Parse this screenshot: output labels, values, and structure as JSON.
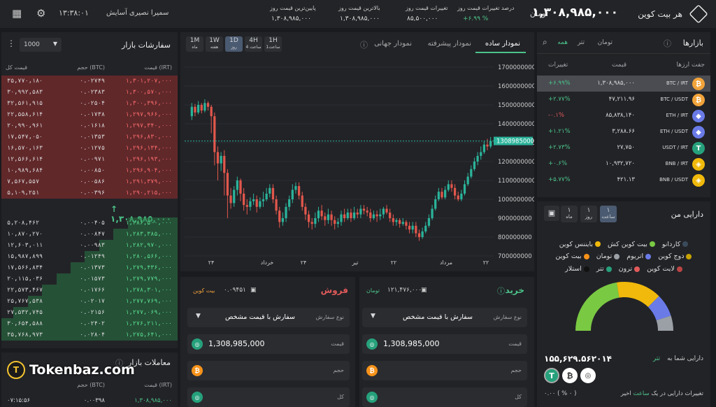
{
  "header": {
    "brand": "هر بیت کوین",
    "price": "۱,۳۰۸,۹۸۵,۰۰۰",
    "unit": "تومان",
    "stats": [
      {
        "label": "درصد تغییرات قیمت روز",
        "value": "+۶.۹۹ %"
      },
      {
        "label": "تغییرات قیمت روز",
        "value": "۸۵,۵۰۰,۰۰۰"
      },
      {
        "label": "بالاترین قیمت روز",
        "value": "۱,۳۰۸,۹۸۵,۰۰۰"
      },
      {
        "label": "پایین‌ترین قیمت روز",
        "value": "۱,۳۰۸,۹۸۵,۰۰۰"
      }
    ],
    "user": "سمیرا نصیری آسایش",
    "clock": "۱۳:۳۸:۰۱"
  },
  "markets": {
    "title": "بازارها",
    "tabs": [
      "تومان",
      "تتر",
      "همه"
    ],
    "cols": [
      "جفت ارزها",
      "قیمت",
      "تغییرات"
    ],
    "rows": [
      {
        "pair": "BTC / IRT",
        "price": "۱,۳۰۸,۹۸۵,۰۰۰",
        "change": "+۶.۹۹%",
        "color": "#f2a33a",
        "sym": "₿",
        "pos": true
      },
      {
        "pair": "BTC / USDT",
        "price": "۴۷,۲۱۱.۹۶",
        "change": "+۲.۷۷%",
        "color": "#f2a33a",
        "sym": "₿",
        "pos": true
      },
      {
        "pair": "ETH / IRT",
        "price": "۸۵,۸۳۸,۱۴۰",
        "change": "-۰.۱%",
        "color": "#6a7be8",
        "sym": "◆",
        "pos": false
      },
      {
        "pair": "ETH / USDT",
        "price": "۳,۲۸۸.۶۶",
        "change": "+۱.۲۱%",
        "color": "#6a7be8",
        "sym": "◆",
        "pos": true
      },
      {
        "pair": "USDT / IRT",
        "price": "۲۷,۷۵۰",
        "change": "+۲.۷۳%",
        "color": "#26a17b",
        "sym": "T",
        "pos": true
      },
      {
        "pair": "BNB / IRT",
        "price": "۱۰,۹۳۲,۷۲۰",
        "change": "+۰.۶%",
        "color": "#f0b90b",
        "sym": "◈",
        "pos": true
      },
      {
        "pair": "BNB / USDT",
        "price": "۴۲۱.۱۳",
        "change": "+۵.۷۷%",
        "color": "#f0b90b",
        "sym": "◈",
        "pos": true
      }
    ]
  },
  "assets": {
    "title": "دارایی من",
    "ranges": [
      {
        "a": "۱",
        "b": "ساعت"
      },
      {
        "a": "۱",
        "b": "روز"
      },
      {
        "a": "۱",
        "b": "ماه"
      }
    ],
    "legend": [
      {
        "name": "کاردانو",
        "color": "#3b4a5a"
      },
      {
        "name": "بیت کوین کش",
        "color": "#7ac943"
      },
      {
        "name": "بایننس کوین",
        "color": "#f0b90b"
      },
      {
        "name": "دوج کوین",
        "color": "#c7a200"
      },
      {
        "name": "اتریوم",
        "color": "#6a7be8"
      },
      {
        "name": "تومان",
        "color": "#9aa0a6"
      },
      {
        "name": "بیت کوین",
        "color": "#f7931a"
      },
      {
        "name": "لایت کوین",
        "color": "#b44"
      },
      {
        "name": "ترون",
        "color": "#e25a5a"
      },
      {
        "name": "تتر",
        "color": "#26a17b"
      },
      {
        "name": "استلار",
        "color": "#111"
      }
    ],
    "donut": [
      {
        "v": 45,
        "c": "#7ac943"
      },
      {
        "v": 30,
        "c": "#f0b90b"
      },
      {
        "v": 15,
        "c": "#6a7be8"
      },
      {
        "v": 10,
        "c": "#9aa0a6"
      }
    ],
    "total_label": "دارایی شما به",
    "total_unit": "تتر",
    "total": "۱۵۵,۶۲۹.۵۶۲۰۱۴",
    "change_label": "تغییرات دارایی در یک",
    "change_word": "ساعت",
    "change_word2": "اخیر",
    "change_value": "۰.۰۰ ( % ۰ )"
  },
  "chart_tabs": {
    "simple": "نمودار ساده",
    "adv": "نمودار پیشرفته",
    "world": "نمودار جهانی"
  },
  "chart_ranges": [
    {
      "a": "1M",
      "b": "ماه"
    },
    {
      "a": "1W",
      "b": "هفته"
    },
    {
      "a": "1D",
      "b": "روز"
    },
    {
      "a": "4H",
      "b": "4 ساعت"
    },
    {
      "a": "1H",
      "b": "1ساعت"
    }
  ],
  "chart_data": {
    "type": "candlestick",
    "ylim": [
      700000000,
      1700000000
    ],
    "yticks": [
      1700000000,
      1600000000,
      1500000000,
      1400000000,
      1300000000,
      1200000000,
      1100000000,
      1000000000,
      900000000,
      800000000,
      700000000
    ],
    "xticks": [
      "۲۴",
      "خرداد",
      "۲۴",
      "تیر",
      "۲۲",
      "مرداد",
      "۲۲"
    ],
    "last": 1308985000,
    "candles": [
      [
        1440,
        1490,
        1510,
        1420
      ],
      [
        1490,
        1460,
        1505,
        1440
      ],
      [
        1460,
        1500,
        1520,
        1450
      ],
      [
        1500,
        1470,
        1510,
        1455
      ],
      [
        1470,
        1510,
        1530,
        1460
      ],
      [
        1510,
        1490,
        1520,
        1470
      ],
      [
        1490,
        1440,
        1500,
        1350
      ],
      [
        1440,
        1250,
        1460,
        1180
      ],
      [
        1250,
        1190,
        1280,
        1100
      ],
      [
        1190,
        1230,
        1250,
        1150
      ],
      [
        1230,
        1140,
        1260,
        1020
      ],
      [
        1140,
        1020,
        1160,
        900
      ],
      [
        1020,
        980,
        1060,
        950
      ],
      [
        980,
        1050,
        1070,
        960
      ],
      [
        1050,
        1100,
        1120,
        1020
      ],
      [
        1100,
        1030,
        1110,
        990
      ],
      [
        1030,
        970,
        1060,
        940
      ],
      [
        970,
        960,
        1000,
        920
      ],
      [
        960,
        990,
        1010,
        940
      ],
      [
        990,
        1000,
        1030,
        970
      ],
      [
        1000,
        960,
        1020,
        930
      ],
      [
        960,
        990,
        1010,
        950
      ],
      [
        990,
        1000,
        1040,
        960
      ],
      [
        1000,
        1030,
        1060,
        990
      ],
      [
        1030,
        1060,
        1080,
        1010
      ],
      [
        1060,
        1000,
        1080,
        980
      ],
      [
        1000,
        940,
        1020,
        920
      ],
      [
        940,
        880,
        960,
        850
      ],
      [
        880,
        900,
        930,
        860
      ],
      [
        900,
        960,
        980,
        880
      ],
      [
        960,
        1000,
        1020,
        940
      ],
      [
        1000,
        1050,
        1080,
        980
      ],
      [
        1050,
        1070,
        1090,
        1030
      ],
      [
        1070,
        1020,
        1090,
        1000
      ],
      [
        1020,
        960,
        1040,
        940
      ],
      [
        960,
        920,
        980,
        890
      ],
      [
        920,
        880,
        940,
        850
      ],
      [
        880,
        870,
        900,
        840
      ],
      [
        870,
        900,
        930,
        850
      ],
      [
        900,
        940,
        960,
        880
      ],
      [
        940,
        910,
        970,
        890
      ],
      [
        910,
        890,
        930,
        860
      ],
      [
        890,
        920,
        950,
        870
      ],
      [
        920,
        890,
        940,
        860
      ],
      [
        890,
        870,
        910,
        840
      ],
      [
        870,
        880,
        900,
        850
      ],
      [
        880,
        920,
        940,
        860
      ],
      [
        920,
        900,
        950,
        880
      ],
      [
        900,
        930,
        950,
        890
      ],
      [
        930,
        900,
        950,
        880
      ],
      [
        900,
        930,
        960,
        890
      ],
      [
        930,
        920,
        950,
        900
      ],
      [
        920,
        950,
        970,
        900
      ],
      [
        950,
        940,
        970,
        920
      ],
      [
        940,
        930,
        960,
        910
      ],
      [
        930,
        900,
        950,
        880
      ],
      [
        900,
        920,
        940,
        890
      ],
      [
        920,
        910,
        940,
        880
      ],
      [
        910,
        920,
        950,
        890
      ],
      [
        920,
        950,
        960,
        900
      ],
      [
        950,
        930,
        970,
        920
      ],
      [
        930,
        900,
        950,
        880
      ],
      [
        900,
        880,
        920,
        860
      ],
      [
        880,
        890,
        900,
        860
      ],
      [
        890,
        870,
        900,
        850
      ],
      [
        870,
        880,
        900,
        860
      ],
      [
        880,
        860,
        890,
        840
      ],
      [
        860,
        840,
        880,
        820
      ],
      [
        840,
        860,
        880,
        820
      ],
      [
        860,
        820,
        880,
        800
      ],
      [
        820,
        800,
        840,
        780
      ],
      [
        800,
        830,
        850,
        790
      ],
      [
        830,
        860,
        880,
        820
      ],
      [
        860,
        900,
        920,
        850
      ],
      [
        900,
        950,
        970,
        890
      ],
      [
        950,
        1000,
        1020,
        940
      ],
      [
        1000,
        1040,
        1060,
        990
      ],
      [
        1040,
        1010,
        1060,
        1000
      ],
      [
        1010,
        1050,
        1070,
        1000
      ],
      [
        1050,
        1080,
        1100,
        1040
      ],
      [
        1080,
        1060,
        1100,
        1040
      ],
      [
        1060,
        1020,
        1080,
        1000
      ],
      [
        1020,
        1000,
        1040,
        990
      ],
      [
        1000,
        1030,
        1050,
        990
      ],
      [
        1030,
        1080,
        1100,
        1020
      ],
      [
        1080,
        1120,
        1140,
        1070
      ],
      [
        1120,
        1160,
        1180,
        1110
      ],
      [
        1160,
        1200,
        1220,
        1150
      ],
      [
        1200,
        1230,
        1250,
        1180
      ],
      [
        1230,
        1250,
        1280,
        1210
      ],
      [
        1250,
        1290,
        1310,
        1240
      ],
      [
        1290,
        1280,
        1320,
        1260
      ],
      [
        1280,
        1309,
        1330,
        1270
      ]
    ]
  },
  "orderbook": {
    "title": "سفارشات بازار",
    "amount": "1000",
    "cols": [
      "قیمت (IRT)",
      "حجم (BTC)",
      "قیمت کل"
    ],
    "asks": [
      [
        "۱,۳۰۱,۲۰۷,۰۰۰",
        "۰.۰۲۷۴۹",
        "۳۵,۷۷۰,۱۸۰"
      ],
      [
        "۱,۳۰۰,۵۷۰,۰۰۰",
        "۰.۰۲۳۸۳",
        "۳۰,۹۹۲,۵۸۳"
      ],
      [
        "۱,۳۰۰,۳۹۶,۰۰۰",
        "۰.۰۲۵۰۴",
        "۳۲,۵۶۱,۹۱۵"
      ],
      [
        "۱,۲۹۷,۹۶۶,۰۰۰",
        "۰.۰۱۷۳۸",
        "۲۲,۵۵۸,۶۱۴"
      ],
      [
        "۱,۲۹۷,۳۴۰,۰۰۰",
        "۰.۰۱۶۱۸",
        "۲۰,۹۹۰,۹۶۱"
      ],
      [
        "۱,۲۹۶,۸۳۰,۰۰۰",
        "۰.۰۱۳۵۳",
        "۱۷,۵۴۷,۰۵۰"
      ],
      [
        "۱,۲۹۶,۱۳۴,۰۰۰",
        "۰.۰۱۲۷۵",
        "۱۶,۵۷۰,۱۶۳"
      ],
      [
        "۱,۲۹۶,۱۹۳,۰۰۰",
        "۰.۰۰۹۷۱",
        "۱۲,۵۶۶,۶۱۴"
      ],
      [
        "۱,۲۹۶,۹۰۴,۰۰۰",
        "۰.۰۰۸۵۰",
        "۱۰,۹۸۹,۶۸۴"
      ],
      [
        "۱,۲۹۱,۳۷۹,۰۰۰",
        "۰.۰۰۵۸۶",
        "۷,۵۶۷,۵۵۷"
      ],
      [
        "۱,۲۹۰,۲۱۵,۰۰۰",
        "۰.۰۰۳۹۶",
        "۵,۱۰۹,۲۵۱"
      ]
    ],
    "mid": "۱,۳۰۸,۹۸۵,۰۰۰",
    "bids": [
      [
        "۱,۲۸۶,۵۰۰,۰۰۰",
        "۰.۰۰۴۰۵",
        "۵,۲۰۸,۴۶۲"
      ],
      [
        "۱,۲۸۳,۳۸۵,۰۰۰",
        "۰.۰۰۸۴۷",
        "۱۰,۸۷۰,۲۷۰"
      ],
      [
        "۱,۲۸۲,۹۷۰,۰۰۰",
        "۰.۰۰۹۸۳",
        "۱۲,۶۰۳,۰۱۱"
      ],
      [
        "۱,۲۸۰,۵۶۶,۰۰۰",
        "۰.۰۱۲۴۹",
        "۱۵,۹۸۷,۸۹۹"
      ],
      [
        "۱,۲۷۹,۴۳۶,۰۰۰",
        "۰.۰۱۳۷۳",
        "۱۷,۵۶۶,۸۳۴"
      ],
      [
        "۱,۲۷۹,۷۷۹,۰۰۰",
        "۰.۰۱۵۷۳",
        "۲۰,۱۱۵,۰۳۶"
      ],
      [
        "۱,۲۷۸,۳۰۱,۰۰۰",
        "۰.۰۱۷۶۶",
        "۲۲,۵۷۳,۴۶۷"
      ],
      [
        "۱,۲۷۷,۷۶۹,۰۰۰",
        "۰.۰۲۰۱۷",
        "۲۵,۷۶۷,۵۳۸"
      ],
      [
        "۱,۲۷۷,۰۶۹,۰۰۰",
        "۰.۰۲۱۵۶",
        "۲۷,۵۳۲,۷۴۵"
      ],
      [
        "۱,۲۷۶,۲۱۱,۰۰۰",
        "۰.۰۲۴۰۲",
        "۳۰,۶۵۴,۵۸۸"
      ],
      [
        "۱,۲۷۵,۶۴۱,۰۰۰",
        "۰.۰۲۸۰۴",
        "۳۵,۷۶۸,۹۷۳"
      ]
    ]
  },
  "trades": {
    "title": "معاملات بازار",
    "cols": [
      "قیمت (IRT)",
      "حجم (BTC)"
    ],
    "row": [
      "۱,۳۰۸,۹۸۵,۰۰۰",
      "۰.۰۰۳۹۸",
      "۰۷:۱۵:۵۶"
    ]
  },
  "buy": {
    "title": "خرید",
    "balance": "۱۲۱,۴۷۶,۰۰۰",
    "balance_unit": "تومان",
    "type_label": "نوع سفارش",
    "type_value": "سفارش با قیمت مشخص",
    "price_label": "قیمت",
    "price_value": "1,308,985,000",
    "vol_label": "حجم",
    "total_label": "کل"
  },
  "sell": {
    "title": "فروش",
    "balance": "۰.۰۹۴۵۱",
    "balance_unit": "بیت کوین",
    "type_label": "نوع سفارش",
    "type_value": "سفارش با قیمت مشخص",
    "price_label": "قیمت",
    "price_value": "1,308,985,000",
    "vol_label": "حجم",
    "total_label": "کل"
  },
  "watermark": "Tokenbaz.com"
}
